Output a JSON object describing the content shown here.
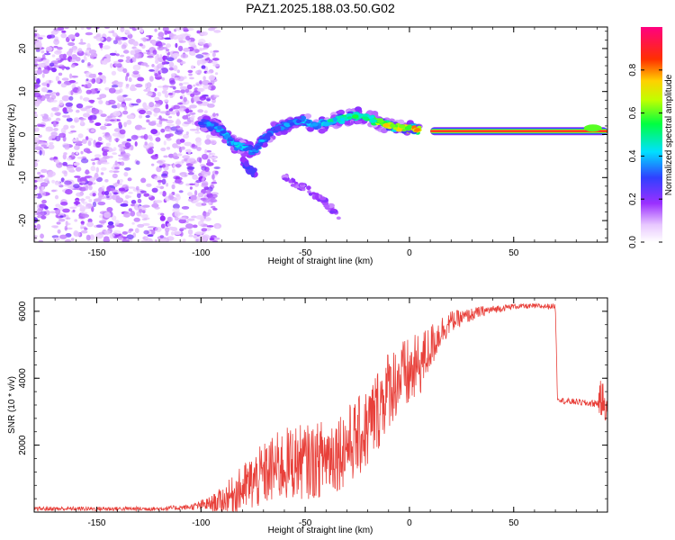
{
  "title": "PAZ1.2025.188.03.50.G02",
  "chart_data": [
    {
      "type": "heatmap",
      "xlabel": "Height of straight line (km)",
      "ylabel": "Frequency (Hz)",
      "xlim": [
        -180,
        95
      ],
      "ylim": [
        -25,
        25
      ],
      "xticks": [
        -150,
        -100,
        -50,
        0,
        50
      ],
      "xtick_labels": [
        "-150",
        "-100",
        "-50",
        "0",
        "50"
      ],
      "yticks": [
        -20,
        -10,
        0,
        10,
        20
      ],
      "ytick_labels": [
        "-20",
        "-10",
        "0",
        "10",
        "20"
      ],
      "colorbar": {
        "label": "Normalized spectral amplitude",
        "range": [
          0,
          1
        ],
        "ticks": [
          0.0,
          0.2,
          0.4,
          0.6,
          0.8
        ],
        "tick_labels": [
          "0.0",
          "0.2",
          "0.4",
          "0.6",
          "0.8"
        ]
      },
      "features": {
        "noise_region_x": [
          -180,
          -100
        ],
        "main_track": [
          {
            "x": -100,
            "y": 3,
            "amp": 0.3
          },
          {
            "x": -95,
            "y": 2,
            "amp": 0.35
          },
          {
            "x": -90,
            "y": 1,
            "amp": 0.35
          },
          {
            "x": -85,
            "y": -2,
            "amp": 0.4
          },
          {
            "x": -80,
            "y": -3,
            "amp": 0.4
          },
          {
            "x": -75,
            "y": -4,
            "amp": 0.35
          },
          {
            "x": -70,
            "y": -1,
            "amp": 0.35
          },
          {
            "x": -65,
            "y": 1,
            "amp": 0.3
          },
          {
            "x": -60,
            "y": 2,
            "amp": 0.35
          },
          {
            "x": -55,
            "y": 3,
            "amp": 0.35
          },
          {
            "x": -50,
            "y": 3,
            "amp": 0.4
          },
          {
            "x": -45,
            "y": 2,
            "amp": 0.4
          },
          {
            "x": -40,
            "y": 2.5,
            "amp": 0.45
          },
          {
            "x": -35,
            "y": 3.5,
            "amp": 0.45
          },
          {
            "x": -30,
            "y": 4,
            "amp": 0.5
          },
          {
            "x": -25,
            "y": 4.5,
            "amp": 0.5
          },
          {
            "x": -20,
            "y": 4,
            "amp": 0.5
          },
          {
            "x": -15,
            "y": 3,
            "amp": 0.6
          },
          {
            "x": -10,
            "y": 2,
            "amp": 0.7
          },
          {
            "x": -5,
            "y": 1.5,
            "amp": 0.75
          },
          {
            "x": 0,
            "y": 1.5,
            "amp": 0.7
          },
          {
            "x": 5,
            "y": 1.2,
            "amp": 0.75
          }
        ],
        "steady_band": {
          "x": [
            10,
            95
          ],
          "y": 0.8,
          "amp": 0.95
        },
        "secondary_branch": [
          {
            "x": -80,
            "y": -6
          },
          {
            "x": -77,
            "y": -8
          },
          {
            "x": -74,
            "y": -9
          }
        ],
        "faint_branch": [
          {
            "x": -60,
            "y": -10
          },
          {
            "x": -52,
            "y": -12
          },
          {
            "x": -45,
            "y": -14
          },
          {
            "x": -38,
            "y": -17
          },
          {
            "x": -33,
            "y": -20
          }
        ]
      }
    },
    {
      "type": "line",
      "xlabel": "Height of straight line (km)",
      "ylabel": "SNR (10 * v/v)",
      "xlim": [
        -180,
        95
      ],
      "ylim": [
        0,
        6400
      ],
      "xticks": [
        -150,
        -100,
        -50,
        0,
        50
      ],
      "xtick_labels": [
        "-150",
        "-100",
        "-50",
        "0",
        "50"
      ],
      "yticks": [
        2000,
        4000,
        6000
      ],
      "ytick_labels": [
        "2000",
        "4000",
        "6000"
      ],
      "series": [
        {
          "color": "#e8403a",
          "x": [
            -180,
            -160,
            -140,
            -120,
            -105,
            -100,
            -95,
            -90,
            -85,
            -80,
            -75,
            -70,
            -65,
            -60,
            -55,
            -50,
            -45,
            -40,
            -35,
            -30,
            -25,
            -20,
            -15,
            -10,
            -5,
            0,
            5,
            10,
            15,
            20,
            25,
            30,
            35,
            40,
            45,
            50,
            55,
            60,
            65,
            70,
            71,
            75,
            80,
            85,
            90,
            92,
            95
          ],
          "y": [
            100,
            100,
            100,
            100,
            150,
            200,
            250,
            350,
            500,
            700,
            900,
            1100,
            1300,
            1400,
            1500,
            1500,
            1500,
            1700,
            1800,
            2000,
            2200,
            2500,
            3100,
            3700,
            4000,
            4100,
            4400,
            4900,
            5400,
            5700,
            5800,
            5900,
            6000,
            6050,
            6100,
            6150,
            6150,
            6150,
            6150,
            6150,
            3400,
            3300,
            3300,
            3250,
            3250,
            3400,
            3100
          ],
          "noise_amplitude": [
            80,
            80,
            80,
            80,
            100,
            200,
            300,
            500,
            700,
            900,
            1100,
            1200,
            1300,
            1400,
            1400,
            1400,
            1400,
            1500,
            1500,
            1500,
            1500,
            1600,
            1600,
            1500,
            1400,
            1400,
            1200,
            900,
            600,
            400,
            300,
            250,
            200,
            150,
            120,
            100,
            100,
            100,
            100,
            100,
            100,
            120,
            120,
            120,
            150,
            800,
            500
          ]
        }
      ]
    }
  ]
}
